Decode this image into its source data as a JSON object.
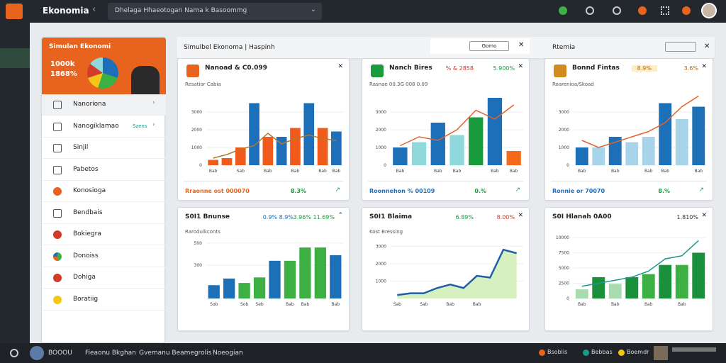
{
  "topbar": {
    "app": "Ekonomia",
    "search": "Dhelaga Hhaeotogan Nama k Basoommg"
  },
  "sidebar": {
    "header": {
      "title": "Simulan Ekonomi",
      "line1": "1000k",
      "line2": "1868%"
    },
    "items": [
      {
        "label": "Nanoriona"
      },
      {
        "label": "Nanogiklamao",
        "tag": "Szens"
      },
      {
        "label": "Sinjil"
      },
      {
        "label": "Pabetos"
      },
      {
        "label": "Konosioga"
      },
      {
        "label": "Bendbais"
      },
      {
        "label": "Bokiegra"
      },
      {
        "label": "Donoiss"
      },
      {
        "label": "Dohiga"
      },
      {
        "label": "Boratiig"
      }
    ]
  },
  "main": {
    "title": "Simulbel Ekonoma | Haspinh",
    "button": "Gomo",
    "right_title": "Rtemia"
  },
  "cards": [
    {
      "title": "Nanoad & C0.099",
      "subtitle": "Resatior Cabia",
      "badges": [],
      "footer": {
        "left": "Rraonne ost 000070",
        "left_color": "#e8641e",
        "right": "8.3%"
      },
      "chart": {
        "ylim": [
          0,
          4000
        ],
        "yticks": [
          0,
          1000,
          2000,
          3000
        ],
        "categories": [
          "Bab",
          null,
          "Sab",
          null,
          "Bab",
          null,
          "Bab",
          null,
          "Bab",
          "Bab"
        ],
        "series": [
          {
            "type": "bar",
            "colors": [
              "#f05a1a",
              "#f05a1a",
              "#f05a1a",
              "#1e6fba",
              "#f05a1a",
              "#1e6fba",
              "#f05a1a",
              "#1e6fba",
              "#f05a1a",
              "#1e6fba"
            ],
            "values": [
              300,
              400,
              1000,
              3500,
              1600,
              1600,
              2100,
              3500,
              2100,
              1900
            ]
          },
          {
            "type": "line",
            "color": "#b07a2a",
            "values": [
              400,
              600,
              900,
              1100,
              1800,
              1200,
              1500,
              1700,
              1500,
              1400
            ]
          }
        ]
      }
    },
    {
      "title": "Nanch Bires",
      "subtitle": "Rasnae 00.3G 008 0.09",
      "badges": [
        {
          "text": "% & 2858",
          "color": "#d23a2a"
        },
        {
          "text": "5.900%",
          "color": "#1a9c3e"
        }
      ],
      "footer": {
        "left": "Roonnehon % 00109",
        "left_color": "#1e6fba",
        "right": "0.%"
      },
      "chart": {
        "ylim": [
          0,
          4000
        ],
        "yticks": [
          0,
          1000,
          2000,
          3000
        ],
        "categories": [
          "Bab",
          null,
          "Bab",
          "Bab",
          null,
          "Bab",
          "Bab"
        ],
        "series": [
          {
            "type": "bar",
            "colors": [
              "#1d6fb8",
              "#8fd8dc",
              "#1d6fb8",
              "#8fd8dc",
              "#1a9c3e",
              "#1d6fb8",
              "#f36a1a"
            ],
            "values": [
              1000,
              1300,
              2400,
              1700,
              2700,
              3800,
              800
            ]
          },
          {
            "type": "line",
            "color": "#e0642a",
            "values": [
              1100,
              1600,
              1400,
              2000,
              3100,
              2600,
              3400
            ]
          }
        ]
      }
    },
    {
      "title": "Bonnd Fintas",
      "subtitle": "Roarenioa/Skoad",
      "badges": [
        {
          "text": "8.9%",
          "color": "#b86a10"
        },
        {
          "text": "3.6%",
          "color": "#b86a10"
        }
      ],
      "footer": {
        "left": "Ronnie or 70070",
        "left_color": "#1e6fba",
        "right": "8.%"
      },
      "chart": {
        "ylim": [
          0,
          4000
        ],
        "yticks": [
          0,
          1000,
          2000,
          3000
        ],
        "categories": [
          "Bab",
          null,
          "Bab",
          null,
          "Bab",
          "Bab",
          null,
          "Bab"
        ],
        "series": [
          {
            "type": "bar",
            "colors": [
              "#1d6fb8",
              "#a8d4ea",
              "#1d6fb8",
              "#a8d4ea",
              "#a8d4ea",
              "#1d6fb8",
              "#a8d4ea",
              "#1d6fb8"
            ],
            "values": [
              1000,
              1000,
              1600,
              1300,
              1600,
              3500,
              2600,
              3300
            ]
          },
          {
            "type": "line",
            "color": "#e0642a",
            "values": [
              1400,
              1000,
              1300,
              1600,
              1900,
              2400,
              3300,
              3900
            ]
          }
        ]
      }
    },
    {
      "title": "S0I1 Bnunse",
      "subtitle": "Rarodulkconts",
      "badges": [
        {
          "text": "0.9% 8.9%",
          "color": "#1e6fba"
        },
        {
          "text": "3.96% 11.69%",
          "color": "#1a9c3e"
        }
      ],
      "chart": {
        "ylim": [
          0,
          550
        ],
        "yticks": [
          300,
          500
        ],
        "categories": [
          "Sob",
          null,
          "Sob",
          "Seb",
          null,
          "Bab",
          "Bab",
          null,
          "Bab"
        ],
        "series": [
          {
            "type": "bar",
            "colors": [
              "#1d6fb8",
              "#1d6fb8",
              "#3cb043",
              "#3cb043",
              "#1d6fb8",
              "#3cb043",
              "#3cb043",
              "#3cb043",
              "#1d6fb8"
            ],
            "values": [
              120,
              180,
              140,
              190,
              340,
              340,
              460,
              460,
              390
            ]
          }
        ]
      }
    },
    {
      "title": "S0I1 Blaima",
      "subtitle": "Kost Bressing",
      "badges": [
        {
          "text": "6.89%",
          "color": "#1a9c3e"
        },
        {
          "text": "8.00%",
          "color": "#d23a2a"
        }
      ],
      "chart": {
        "ylim": [
          0,
          3500
        ],
        "yticks": [
          1000,
          2000,
          3000
        ],
        "categories": [
          "Sab",
          null,
          "Sab",
          null,
          "Bab",
          null,
          "Bab",
          null,
          null,
          null
        ],
        "series": [
          {
            "type": "area",
            "color": "#1e5fa8",
            "fill": "#d6f0c0",
            "values": [
              200,
              300,
              300,
              600,
              800,
              600,
              1300,
              1200,
              2800,
              2600
            ]
          }
        ]
      }
    },
    {
      "title": "S0I Hlanah 0A00",
      "subtitle": "",
      "badges": [
        {
          "text": "1.810%",
          "color": "#333333"
        }
      ],
      "chart": {
        "ylim": [
          0,
          10000
        ],
        "yticks": [
          0,
          2500,
          5000,
          7500,
          10000
        ],
        "categories": [
          "Bab",
          null,
          "Bab",
          null,
          "Bab",
          null,
          "Bab",
          null
        ],
        "series": [
          {
            "type": "bar",
            "colors": [
              "#a8dcb0",
              "#1a8f3c",
              "#a8dcb0",
              "#1a8f3c",
              "#3cb043",
              "#1a8f3c",
              "#3cb043",
              "#1a8f3c"
            ],
            "values": [
              1500,
              3500,
              2400,
              3500,
              4000,
              5500,
              5500,
              7500
            ]
          },
          {
            "type": "line",
            "color": "#1a9a8a",
            "values": [
              2000,
              2500,
              3000,
              3500,
              4500,
              6500,
              7000,
              9500
            ]
          }
        ]
      }
    }
  ],
  "bottombar": {
    "user": "BOOOU",
    "links": [
      "Fieaonu Bkghan",
      "Gvemanu Beamegrolis",
      "Noeogian"
    ],
    "status": [
      "Bsoblis",
      "Bebbas",
      "Boemdr"
    ]
  }
}
